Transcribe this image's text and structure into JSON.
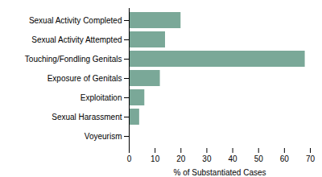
{
  "chart_data": {
    "type": "bar",
    "orientation": "horizontal",
    "categories": [
      "Sexual Activity Completed",
      "Sexual Activity Attempted",
      "Touching/Fondling Genitals",
      "Exposure of Genitals",
      "Exploitation",
      "Sexual Harassment",
      "Voyeurism"
    ],
    "values": [
      20,
      14,
      68,
      12,
      6,
      4,
      0.3
    ],
    "color": "#7aA898",
    "xlabel": "% of Substantiated Cases",
    "xlim": [
      0,
      70
    ],
    "xticks": [
      0,
      10,
      20,
      30,
      40,
      50,
      60,
      70
    ],
    "grid": false
  }
}
